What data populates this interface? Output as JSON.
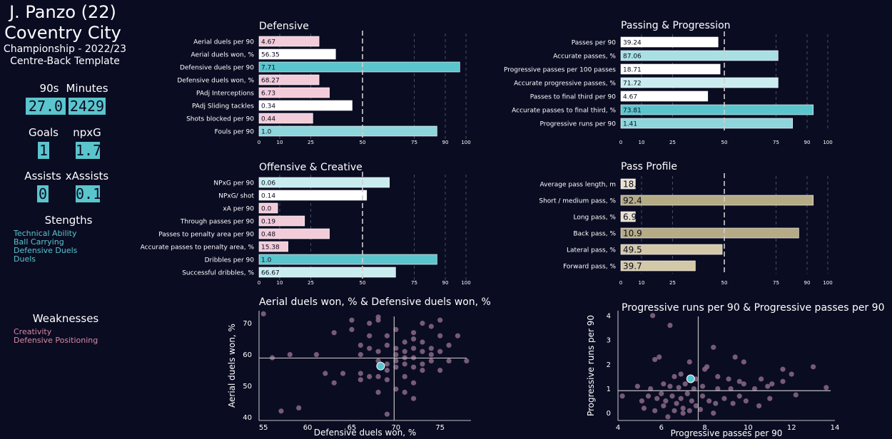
{
  "player": {
    "name": "J. Panzo (22)",
    "team": "Coventry City",
    "competition": "Championship - 2022/23",
    "template": "Centre-Back Template"
  },
  "stats": [
    {
      "label": "90s",
      "value": "27.0"
    },
    {
      "label": "Minutes",
      "value": "2429"
    },
    {
      "label": "Goals",
      "value": "1"
    },
    {
      "label": "npxG",
      "value": "1.7"
    },
    {
      "label": "Assists",
      "value": "0"
    },
    {
      "label": "xAssists",
      "value": "0.1"
    }
  ],
  "strengths": {
    "title": "Stengths",
    "items": [
      "Technical Ability",
      "Ball Carrying",
      "Defensive Duels",
      "Duels"
    ],
    "color": "#5bc5cd"
  },
  "weaknesses": {
    "title": "Weaknesses",
    "items": [
      "Creativity",
      "Defensive Positioning"
    ],
    "color": "#d88aa3"
  },
  "colors": {
    "background": "#0a0c22",
    "accent": "#5bc5cd",
    "light_teal": "#c9ecef",
    "pink": "#f3ccd9",
    "white": "#ffffff",
    "khaki": "#b5ab85",
    "light_khaki": "#d3c8a8",
    "scatter_point": "#8a6a86",
    "highlight_point": "#5bc5cd"
  },
  "chart_data": [
    {
      "type": "bar",
      "orientation": "horizontal",
      "title": "Defensive",
      "categories": [
        "Aerial duels per 90",
        "Aerial duels won, %",
        "Defensive duels per 90",
        "Defensive duels won, %",
        "PAdj Interceptions",
        "PAdj Sliding tackles",
        "Shots blocked per 90",
        "Fouls per 90"
      ],
      "value_labels": [
        "4.67",
        "56.35",
        "7.71",
        "68.27",
        "6.73",
        "0.34",
        "0.44",
        "1.0"
      ],
      "percentiles": [
        29,
        37,
        97,
        29,
        34,
        45,
        26,
        86
      ],
      "bar_colors": [
        "#f3ccd9",
        "#ffffff",
        "#5bc5cd",
        "#f3ccd9",
        "#f3ccd9",
        "#ffffff",
        "#f3ccd9",
        "#8fd6dc"
      ],
      "xticks": [
        0,
        10,
        25,
        50,
        75,
        90,
        100
      ],
      "xlim": [
        0,
        100
      ],
      "reference_line": 50
    },
    {
      "type": "bar",
      "orientation": "horizontal",
      "title": "Passing & Progression",
      "categories": [
        "Passes per 90",
        "Accurate passes, %",
        "Progressive passes per 100 passes",
        "Accurate progressive passes, %",
        "Passes to final third per 90",
        "Accurate passes to final third, %",
        "Progressive runs per 90"
      ],
      "value_labels": [
        "39.24",
        "87.06",
        "18.71",
        "71.72",
        "4.67",
        "73.81",
        "1.41"
      ],
      "percentiles": [
        47,
        76,
        48,
        76,
        42,
        93,
        83
      ],
      "bar_colors": [
        "#ffffff",
        "#a8e0e4",
        "#ffffff",
        "#c9ecef",
        "#ffffff",
        "#5bc5cd",
        "#8fd6dc"
      ],
      "xticks": [
        0,
        10,
        25,
        50,
        75,
        90,
        100
      ],
      "xlim": [
        0,
        100
      ],
      "reference_line": 50
    },
    {
      "type": "bar",
      "orientation": "horizontal",
      "title": "Offensive & Creative",
      "categories": [
        "NPxG per 90",
        "NPxG/ shot",
        "xA per 90",
        "Through passes per 90",
        "Passes to penalty area per 90",
        "Accurate passes to penalty area, %",
        "Dribbles per 90",
        "Successful dribbles, %"
      ],
      "value_labels": [
        "0.06",
        "0.14",
        "0.0",
        "0.19",
        "0.48",
        "15.38",
        "1.0",
        "66.67"
      ],
      "percentiles": [
        63,
        52,
        9,
        22,
        34,
        14,
        86,
        66
      ],
      "bar_colors": [
        "#c9ecef",
        "#ffffff",
        "#f3ccd9",
        "#f3ccd9",
        "#f3ccd9",
        "#f3ccd9",
        "#5bc5cd",
        "#c9ecef"
      ],
      "xticks": [
        0,
        10,
        25,
        50,
        75,
        90,
        100
      ],
      "xlim": [
        0,
        100
      ],
      "reference_line": 50
    },
    {
      "type": "bar",
      "orientation": "horizontal",
      "title": "Pass Profile",
      "categories": [
        "Average pass length, m",
        "Short / medium pass, %",
        "Long pass, %",
        "Back pass, %",
        "Lateral pass, %",
        "Forward pass, %"
      ],
      "value_labels": [
        "18.",
        "92.4",
        "6.9",
        "10.9",
        "49.5",
        "39.7"
      ],
      "percentiles": [
        7,
        93,
        7,
        86,
        49,
        36
      ],
      "bar_colors": [
        "#e8e2cf",
        "#b5ab85",
        "#e8e2cf",
        "#b5ab85",
        "#d3c8a8",
        "#d3c8a8"
      ],
      "xticks": [
        0,
        10,
        25,
        50,
        75,
        90,
        100
      ],
      "xlim": [
        0,
        100
      ],
      "reference_line": 50
    },
    {
      "type": "scatter",
      "title": "Aerial duels won, % & Defensive duels won, %",
      "xlabel": "Defensive duels won, %",
      "ylabel": "Aerial duels won, %",
      "xlim": [
        54.5,
        78.5
      ],
      "ylim": [
        39,
        74
      ],
      "xticks": [
        55,
        60,
        65,
        70,
        75
      ],
      "yticks": [
        40,
        50,
        60,
        70
      ],
      "reference_x": 69.8,
      "reference_y": 58.9,
      "highlight": {
        "x": 68.27,
        "y": 56.35
      },
      "points": [
        [
          55,
          73
        ],
        [
          56,
          59
        ],
        [
          57,
          42
        ],
        [
          58,
          60
        ],
        [
          59,
          43
        ],
        [
          61,
          60
        ],
        [
          62,
          54
        ],
        [
          63,
          51
        ],
        [
          63,
          67
        ],
        [
          64,
          54
        ],
        [
          65,
          68
        ],
        [
          65,
          71
        ],
        [
          66,
          60
        ],
        [
          66,
          63
        ],
        [
          66,
          52
        ],
        [
          66,
          54
        ],
        [
          67,
          66
        ],
        [
          67,
          62
        ],
        [
          67,
          53
        ],
        [
          68,
          71
        ],
        [
          68,
          61
        ],
        [
          68,
          58
        ],
        [
          68,
          53
        ],
        [
          68,
          48
        ],
        [
          69,
          63
        ],
        [
          69,
          66
        ],
        [
          69,
          57
        ],
        [
          69,
          55
        ],
        [
          69,
          52
        ],
        [
          69,
          41
        ],
        [
          70,
          62
        ],
        [
          70,
          68
        ],
        [
          70,
          60
        ],
        [
          70,
          58
        ],
        [
          70,
          56
        ],
        [
          70,
          49
        ],
        [
          71,
          64
        ],
        [
          71,
          61
        ],
        [
          71,
          59
        ],
        [
          71,
          57
        ],
        [
          71,
          53
        ],
        [
          71,
          48
        ],
        [
          72,
          67
        ],
        [
          72,
          65
        ],
        [
          72,
          62
        ],
        [
          72,
          59
        ],
        [
          72,
          56
        ],
        [
          72,
          51
        ],
        [
          72,
          46
        ],
        [
          73,
          70
        ],
        [
          73,
          64
        ],
        [
          73,
          61
        ],
        [
          73,
          57
        ],
        [
          73,
          55
        ],
        [
          74,
          69
        ],
        [
          74,
          62
        ],
        [
          74,
          60
        ],
        [
          74,
          58
        ],
        [
          75,
          71
        ],
        [
          75,
          66
        ],
        [
          75,
          61
        ],
        [
          75,
          55
        ],
        [
          76,
          63
        ],
        [
          76,
          58
        ],
        [
          77,
          66
        ],
        [
          78,
          58
        ],
        [
          67,
          70
        ],
        [
          68,
          72
        ]
      ]
    },
    {
      "type": "scatter",
      "title": "Progressive runs per 90 & Progressive passes per 90",
      "xlabel": "Progressive passes per 90",
      "ylabel": "Progressive runs per 90",
      "xlim": [
        4,
        14
      ],
      "ylim": [
        -0.3,
        4.2
      ],
      "xticks": [
        4,
        6,
        8,
        10,
        12,
        14
      ],
      "yticks": [
        0,
        1,
        2,
        3,
        4
      ],
      "reference_x": 7.7,
      "reference_y": 0.92,
      "highlight": {
        "x": 7.35,
        "y": 1.41
      },
      "points": [
        [
          5.6,
          4.0
        ],
        [
          6.4,
          3.6
        ],
        [
          8.4,
          2.7
        ],
        [
          5.7,
          2.2
        ],
        [
          5.9,
          2.3
        ],
        [
          7.3,
          2.1
        ],
        [
          9.4,
          2.3
        ],
        [
          8.1,
          1.9
        ],
        [
          8.0,
          1.8
        ],
        [
          9.8,
          2.1
        ],
        [
          11.6,
          1.8
        ],
        [
          12.0,
          1.6
        ],
        [
          13.0,
          1.9
        ],
        [
          6.6,
          1.5
        ],
        [
          6.9,
          1.6
        ],
        [
          7.6,
          1.4
        ],
        [
          8.6,
          1.5
        ],
        [
          9.1,
          1.4
        ],
        [
          9.6,
          1.3
        ],
        [
          10.6,
          1.4
        ],
        [
          11.1,
          1.2
        ],
        [
          11.6,
          1.3
        ],
        [
          13.6,
          1.05
        ],
        [
          4.9,
          1.1
        ],
        [
          5.5,
          1.0
        ],
        [
          6.1,
          1.2
        ],
        [
          6.4,
          1.1
        ],
        [
          6.8,
          1.05
        ],
        [
          7.1,
          1.2
        ],
        [
          7.5,
          1.0
        ],
        [
          7.9,
          1.1
        ],
        [
          8.6,
          1.0
        ],
        [
          9.2,
          1.0
        ],
        [
          9.8,
          1.2
        ],
        [
          10.3,
          1.0
        ],
        [
          10.9,
          1.1
        ],
        [
          5.1,
          0.5
        ],
        [
          5.4,
          0.7
        ],
        [
          5.8,
          0.6
        ],
        [
          6.0,
          0.8
        ],
        [
          6.2,
          0.5
        ],
        [
          6.5,
          0.7
        ],
        [
          6.7,
          0.4
        ],
        [
          6.9,
          0.6
        ],
        [
          7.2,
          0.8
        ],
        [
          7.4,
          0.5
        ],
        [
          7.6,
          0.3
        ],
        [
          7.9,
          0.7
        ],
        [
          8.2,
          0.5
        ],
        [
          8.5,
          0.4
        ],
        [
          8.9,
          0.6
        ],
        [
          9.3,
          0.4
        ],
        [
          9.6,
          0.7
        ],
        [
          9.9,
          0.5
        ],
        [
          10.5,
          0.3
        ],
        [
          11.0,
          0.6
        ],
        [
          5.2,
          0.2
        ],
        [
          5.7,
          0.1
        ],
        [
          6.1,
          0.3
        ],
        [
          6.6,
          0.1
        ],
        [
          7.0,
          0.2
        ],
        [
          7.3,
          0.1
        ],
        [
          7.8,
          0.15
        ],
        [
          8.4,
          0.0
        ],
        [
          4.2,
          0.7
        ],
        [
          12.2,
          0.75
        ],
        [
          6.3,
          -0.15
        ],
        [
          7.0,
          0.0
        ]
      ]
    }
  ]
}
